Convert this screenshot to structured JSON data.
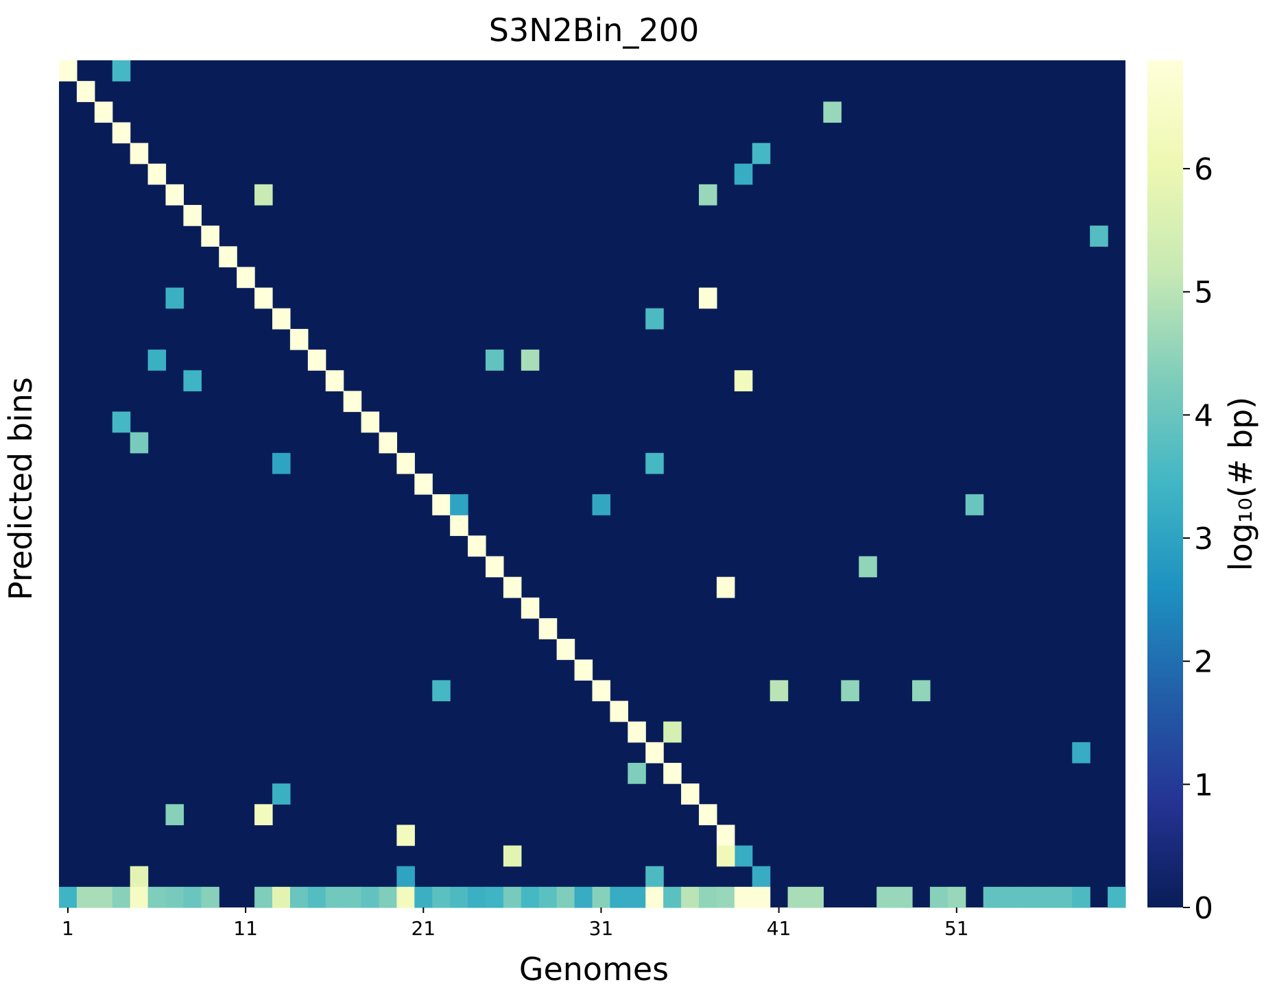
{
  "chart_data": {
    "type": "heatmap",
    "title": "S3N2Bin_200",
    "xlabel": "Genomes",
    "ylabel": "Predicted bins",
    "n_cols": 60,
    "n_rows": 41,
    "x_tick_labels": [
      {
        "col": 0,
        "label": "1"
      },
      {
        "col": 10,
        "label": "11"
      },
      {
        "col": 20,
        "label": "21"
      },
      {
        "col": 30,
        "label": "31"
      },
      {
        "col": 40,
        "label": "41"
      },
      {
        "col": 50,
        "label": "51"
      }
    ],
    "colorbar": {
      "label": "log₁₀(# bp)",
      "range": [
        0,
        6.88
      ],
      "colormap": "YlGnBu",
      "ticks": [
        "0",
        "1",
        "2",
        "3",
        "4",
        "5",
        "6"
      ]
    },
    "diagonal_value": 6.88,
    "cells": [
      [
        0,
        3,
        3.5
      ],
      [
        2,
        43,
        4.6
      ],
      [
        4,
        39,
        3.5
      ],
      [
        5,
        38,
        3.2
      ],
      [
        6,
        11,
        5.2
      ],
      [
        6,
        36,
        4.6
      ],
      [
        8,
        58,
        3.7
      ],
      [
        11,
        6,
        3.3
      ],
      [
        11,
        36,
        6.8
      ],
      [
        12,
        33,
        3.6
      ],
      [
        14,
        5,
        3.3
      ],
      [
        14,
        24,
        3.9
      ],
      [
        14,
        26,
        4.8
      ],
      [
        15,
        7,
        3.4
      ],
      [
        15,
        38,
        6.3
      ],
      [
        17,
        3,
        3.5
      ],
      [
        18,
        4,
        4.2
      ],
      [
        19,
        12,
        3.0
      ],
      [
        19,
        33,
        3.5
      ],
      [
        21,
        22,
        3.0
      ],
      [
        21,
        30,
        3.1
      ],
      [
        21,
        51,
        4.0
      ],
      [
        24,
        45,
        4.5
      ],
      [
        25,
        37,
        6.8
      ],
      [
        30,
        21,
        3.5
      ],
      [
        30,
        40,
        5.0
      ],
      [
        30,
        44,
        4.5
      ],
      [
        30,
        48,
        4.5
      ],
      [
        32,
        34,
        5.5
      ],
      [
        33,
        57,
        3.2
      ],
      [
        34,
        32,
        4.3
      ],
      [
        35,
        12,
        3.3
      ],
      [
        36,
        6,
        4.4
      ],
      [
        36,
        11,
        6.3
      ],
      [
        37,
        19,
        6.3
      ],
      [
        38,
        25,
        5.8
      ],
      [
        38,
        37,
        6.2
      ],
      [
        38,
        38,
        3.2
      ],
      [
        39,
        4,
        5.8
      ],
      [
        39,
        19,
        3.0
      ],
      [
        39,
        33,
        3.6
      ],
      [
        39,
        39,
        3.2
      ],
      [
        40,
        0,
        3.4
      ],
      [
        40,
        1,
        4.8
      ],
      [
        40,
        2,
        4.8
      ],
      [
        40,
        3,
        4.4
      ],
      [
        40,
        4,
        6.4
      ],
      [
        40,
        5,
        4.3
      ],
      [
        40,
        6,
        4.2
      ],
      [
        40,
        7,
        4.0
      ],
      [
        40,
        8,
        4.4
      ],
      [
        40,
        11,
        4.3
      ],
      [
        40,
        12,
        5.8
      ],
      [
        40,
        13,
        4.0
      ],
      [
        40,
        14,
        3.7
      ],
      [
        40,
        15,
        4.1
      ],
      [
        40,
        16,
        4.1
      ],
      [
        40,
        17,
        3.9
      ],
      [
        40,
        18,
        4.3
      ],
      [
        40,
        19,
        6.3
      ],
      [
        40,
        20,
        3.3
      ],
      [
        40,
        21,
        3.8
      ],
      [
        40,
        22,
        3.6
      ],
      [
        40,
        23,
        3.3
      ],
      [
        40,
        24,
        3.4
      ],
      [
        40,
        25,
        4.2
      ],
      [
        40,
        26,
        3.5
      ],
      [
        40,
        27,
        3.8
      ],
      [
        40,
        28,
        4.3
      ],
      [
        40,
        29,
        3.2
      ],
      [
        40,
        30,
        4.4
      ],
      [
        40,
        31,
        3.2
      ],
      [
        40,
        32,
        3.2
      ],
      [
        40,
        33,
        6.8
      ],
      [
        40,
        34,
        3.8
      ],
      [
        40,
        35,
        5.0
      ],
      [
        40,
        36,
        4.5
      ],
      [
        40,
        37,
        4.6
      ],
      [
        40,
        38,
        6.8
      ],
      [
        40,
        39,
        6.8
      ],
      [
        40,
        41,
        4.8
      ],
      [
        40,
        42,
        4.8
      ],
      [
        40,
        46,
        4.6
      ],
      [
        40,
        47,
        4.6
      ],
      [
        40,
        49,
        4.4
      ],
      [
        40,
        50,
        4.6
      ],
      [
        40,
        52,
        3.9
      ],
      [
        40,
        53,
        3.9
      ],
      [
        40,
        54,
        3.9
      ],
      [
        40,
        55,
        3.9
      ],
      [
        40,
        56,
        3.9
      ],
      [
        40,
        57,
        3.6
      ],
      [
        40,
        59,
        3.5
      ]
    ]
  }
}
